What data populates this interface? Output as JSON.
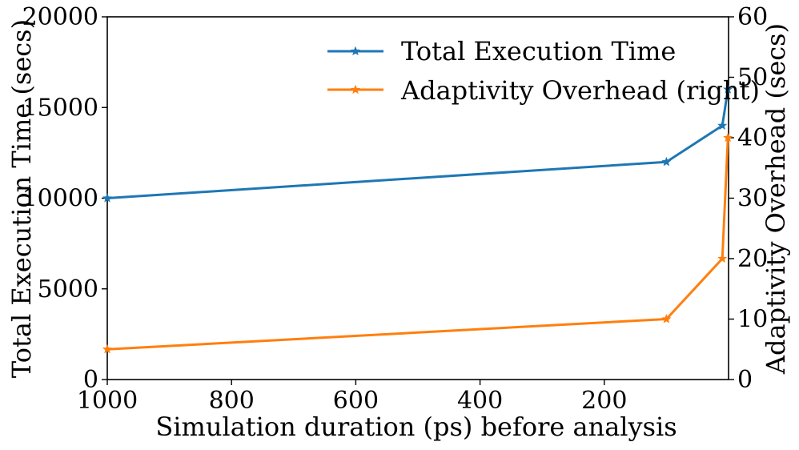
{
  "chart_data": {
    "type": "line",
    "x_axis": {
      "label": "Simulation duration (ps) before analysis",
      "range": [
        1000,
        0
      ],
      "inverted": true,
      "ticks": [
        1000,
        800,
        600,
        400,
        200
      ],
      "tick_labels": [
        "1000",
        "800",
        "600",
        "400",
        "200"
      ]
    },
    "y_axis_left": {
      "label": "Total Execution Time (secs)",
      "range": [
        0,
        20000
      ],
      "ticks": [
        0,
        5000,
        10000,
        15000,
        20000
      ],
      "tick_labels": [
        "0",
        "5000",
        "10000",
        "15000",
        "20000"
      ]
    },
    "y_axis_right": {
      "label": "Adaptivity Overhead (secs)",
      "range": [
        0,
        60
      ],
      "ticks": [
        0,
        10,
        20,
        30,
        40,
        50,
        60
      ],
      "tick_labels": [
        "0",
        "10",
        "20",
        "30",
        "40",
        "50",
        "60"
      ]
    },
    "series": [
      {
        "name": "Total Execution Time",
        "axis": "left",
        "color": "#1f77b4",
        "marker": "star",
        "x": [
          1000,
          100,
          10,
          1
        ],
        "y": [
          10000,
          12000,
          14000,
          16000
        ]
      },
      {
        "name": "Adaptivity Overhead (right)",
        "axis": "right",
        "color": "#ff7f0e",
        "marker": "star",
        "x": [
          1000,
          100,
          10,
          1
        ],
        "y": [
          5,
          10,
          20,
          40
        ]
      }
    ],
    "legend": {
      "position": "top-right"
    },
    "grid": false
  }
}
